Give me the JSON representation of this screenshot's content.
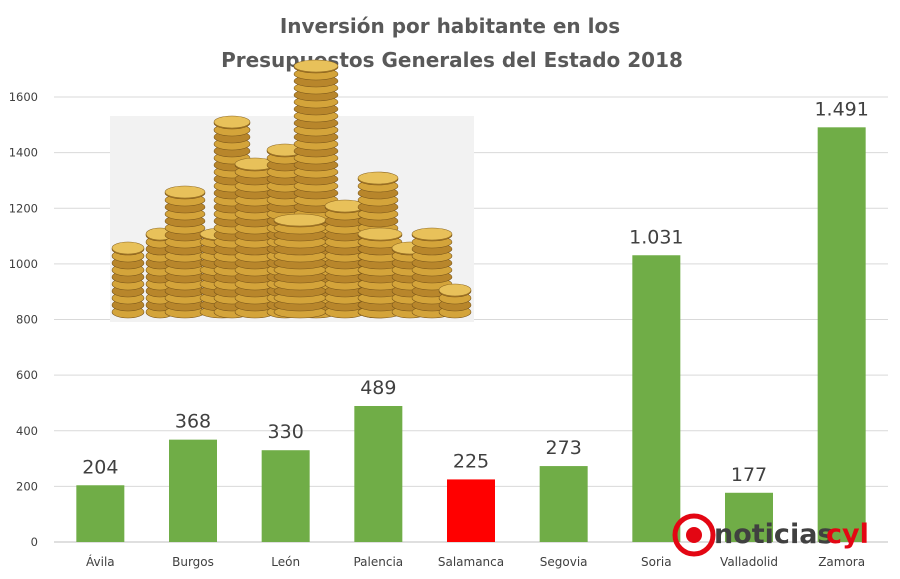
{
  "chart_data": {
    "type": "bar",
    "title": [
      "Inversión por habitante en los",
      "Presupuestos Generales del Estado 2018"
    ],
    "categories": [
      "Ávila",
      "Burgos",
      "León",
      "Palencia",
      "Salamanca",
      "Segovia",
      "Soria",
      "Valladolid",
      "Zamora"
    ],
    "values": [
      204,
      368,
      330,
      489,
      225,
      273,
      1031,
      177,
      1491
    ],
    "data_labels": [
      "204",
      "368",
      "330",
      "489",
      "225",
      "273",
      "1.031",
      "177",
      "1.491"
    ],
    "colors": [
      "#70ad47",
      "#70ad47",
      "#70ad47",
      "#70ad47",
      "#ff0000",
      "#70ad47",
      "#70ad47",
      "#70ad47",
      "#70ad47"
    ],
    "ylim": [
      0,
      1600
    ],
    "yticks": [
      0,
      200,
      400,
      600,
      800,
      1000,
      1200,
      1400,
      1600
    ],
    "grid": true,
    "xlabel": "",
    "ylabel": ""
  },
  "logo": {
    "text_a": "noticias",
    "text_b": "cyl"
  }
}
